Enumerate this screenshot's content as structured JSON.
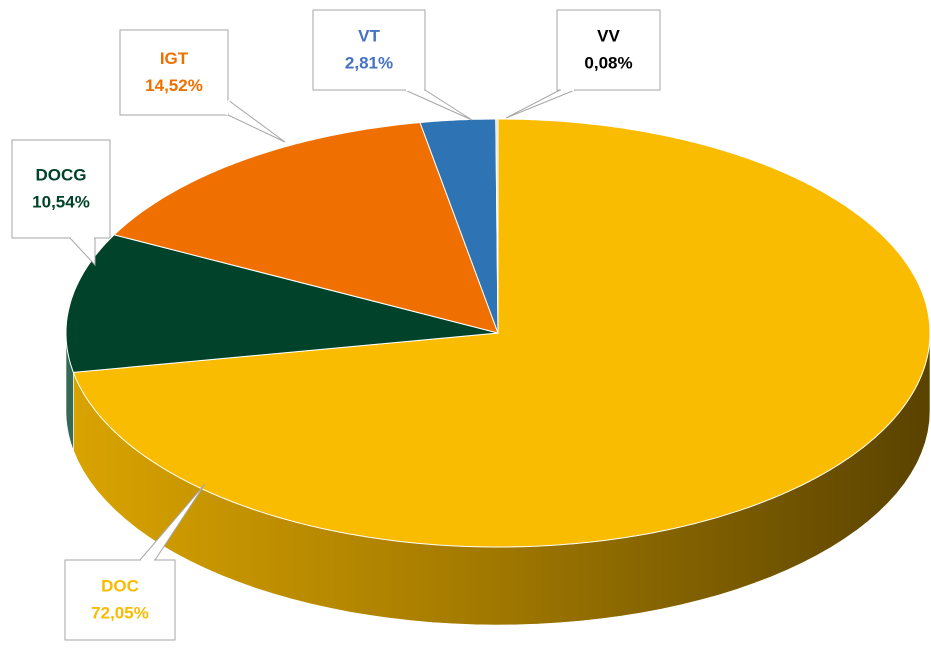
{
  "chart_data": {
    "type": "pie3d",
    "categories": [
      "DOC",
      "DOCG",
      "IGT",
      "VT",
      "VV"
    ],
    "values": [
      72.05,
      10.54,
      14.52,
      2.81,
      0.08
    ],
    "value_labels": [
      "72,05%",
      "10,54%",
      "14,52%",
      "2,81%",
      "0,08%"
    ],
    "colors": [
      "#f9bc00",
      "#00432a",
      "#ef7000",
      "#2e74b5",
      "#d9d9d9"
    ],
    "label_colors": [
      "#f9bc00",
      "#00432a",
      "#ef7000",
      "#4472c4",
      "#000000"
    ]
  }
}
